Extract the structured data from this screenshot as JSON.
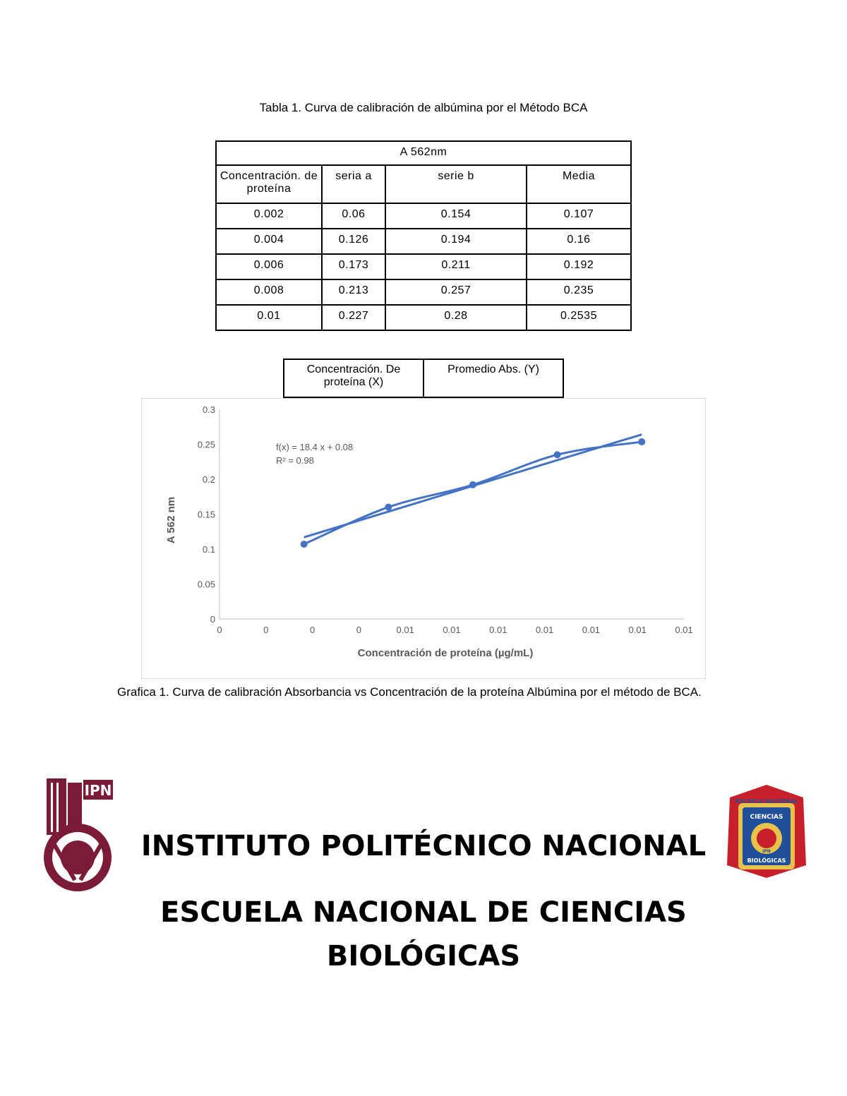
{
  "table1": {
    "caption": "Tabla 1. Curva de calibración de albúmina por el Método BCA",
    "group_header": "A 562nm",
    "columns": [
      "Concentración. de proteína",
      "seria a",
      "serie b",
      "Media"
    ],
    "rows": [
      [
        "0.002",
        "0.06",
        "0.154",
        "0.107"
      ],
      [
        "0.004",
        "0.126",
        "0.194",
        "0.16"
      ],
      [
        "0.006",
        "0.173",
        "0.211",
        "0.192"
      ],
      [
        "0.008",
        "0.213",
        "0.257",
        "0.235"
      ],
      [
        "0.01",
        "0.227",
        "0.28",
        "0.2535"
      ]
    ]
  },
  "table2": {
    "columns": [
      "Concentración. De proteína (X)",
      "Promedio Abs. (Y)"
    ]
  },
  "chart_data": {
    "type": "scatter",
    "x": [
      0.002,
      0.004,
      0.006,
      0.008,
      0.01
    ],
    "y": [
      0.107,
      0.16,
      0.192,
      0.235,
      0.2535
    ],
    "trendline": {
      "slope": 18.4,
      "intercept": 0.08
    },
    "annotation_lines": [
      "f(x) = 18.4 x + 0.08",
      "R² = 0.98"
    ],
    "xlabel": "Concentración de proteína (µg/mL)",
    "ylabel": "A 562 nm",
    "x_tick_labels": [
      "0",
      "0",
      "0",
      "0",
      "0.01",
      "0.01",
      "0.01",
      "0.01",
      "0.01",
      "0.01",
      "0.01"
    ],
    "xlim": [
      0,
      0.011
    ],
    "y_ticks": [
      0,
      0.05,
      0.1,
      0.15,
      0.2,
      0.25,
      0.3
    ],
    "y_tick_labels": [
      "0",
      "0.05",
      "0.1",
      "0.15",
      "0.2",
      "0.25",
      "0.3"
    ],
    "ylim": [
      0,
      0.3
    ],
    "grid": false,
    "series_color": "#4472c4"
  },
  "figure_caption": "Grafica 1. Curva de calibración Absorbancia vs Concentración de la proteína Albúmina por el método de BCA.",
  "institution": {
    "name": "INSTITUTO POLITÉCNICO NACIONAL",
    "school_line1": "ESCUELA NACIONAL DE CIENCIAS",
    "school_line2": "BIOLÓGICAS",
    "ipn_logo_text": "IPN",
    "encb_logo_text": [
      "ESCUELA NACIONAL",
      "CIENCIAS",
      "BIOLÓGICAS",
      "IPN"
    ],
    "ipn_color": "#7b1b38",
    "encb_colors": [
      "#c8202a",
      "#1f4e9a",
      "#e8c24a"
    ]
  }
}
